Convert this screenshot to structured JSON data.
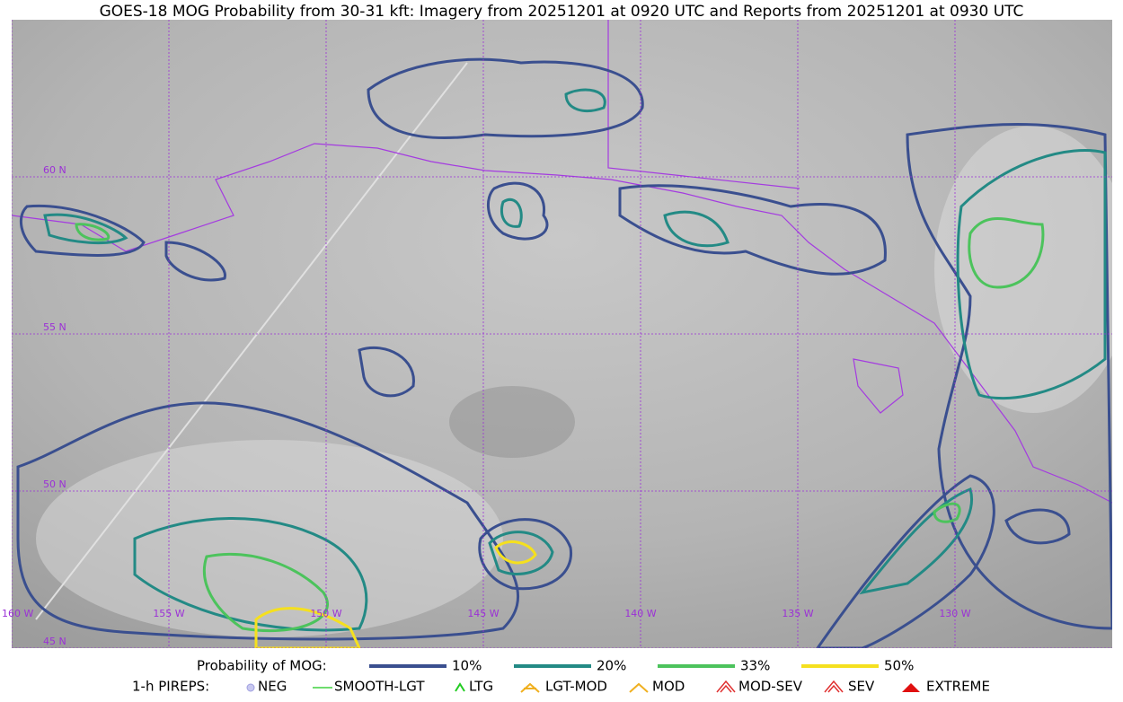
{
  "title": "GOES-18 MOG Probability from 30-31 kft: Imagery from 20251201 at 0920 UTC and Reports from 20251201 at 0930 UTC",
  "map": {
    "lat_labels": [
      "60 N",
      "55 N",
      "50 N",
      "45 N"
    ],
    "lon_labels": [
      "160 W",
      "155 W",
      "150 W",
      "145 W",
      "140 W",
      "135 W",
      "130 W"
    ]
  },
  "legend": {
    "probability": {
      "label": "Probability of MOG:",
      "items": [
        {
          "label": "10%",
          "color": "#3a4f8f"
        },
        {
          "label": "20%",
          "color": "#238a85"
        },
        {
          "label": "33%",
          "color": "#4cc35c"
        },
        {
          "label": "50%",
          "color": "#f5e01e"
        }
      ]
    },
    "pireps": {
      "label": "1-h PIREPS:",
      "items": [
        "NEG",
        "SMOOTH-LGT",
        "LTG",
        "LGT-MOD",
        "MOD",
        "MOD-SEV",
        "SEV",
        "EXTREME"
      ]
    }
  }
}
